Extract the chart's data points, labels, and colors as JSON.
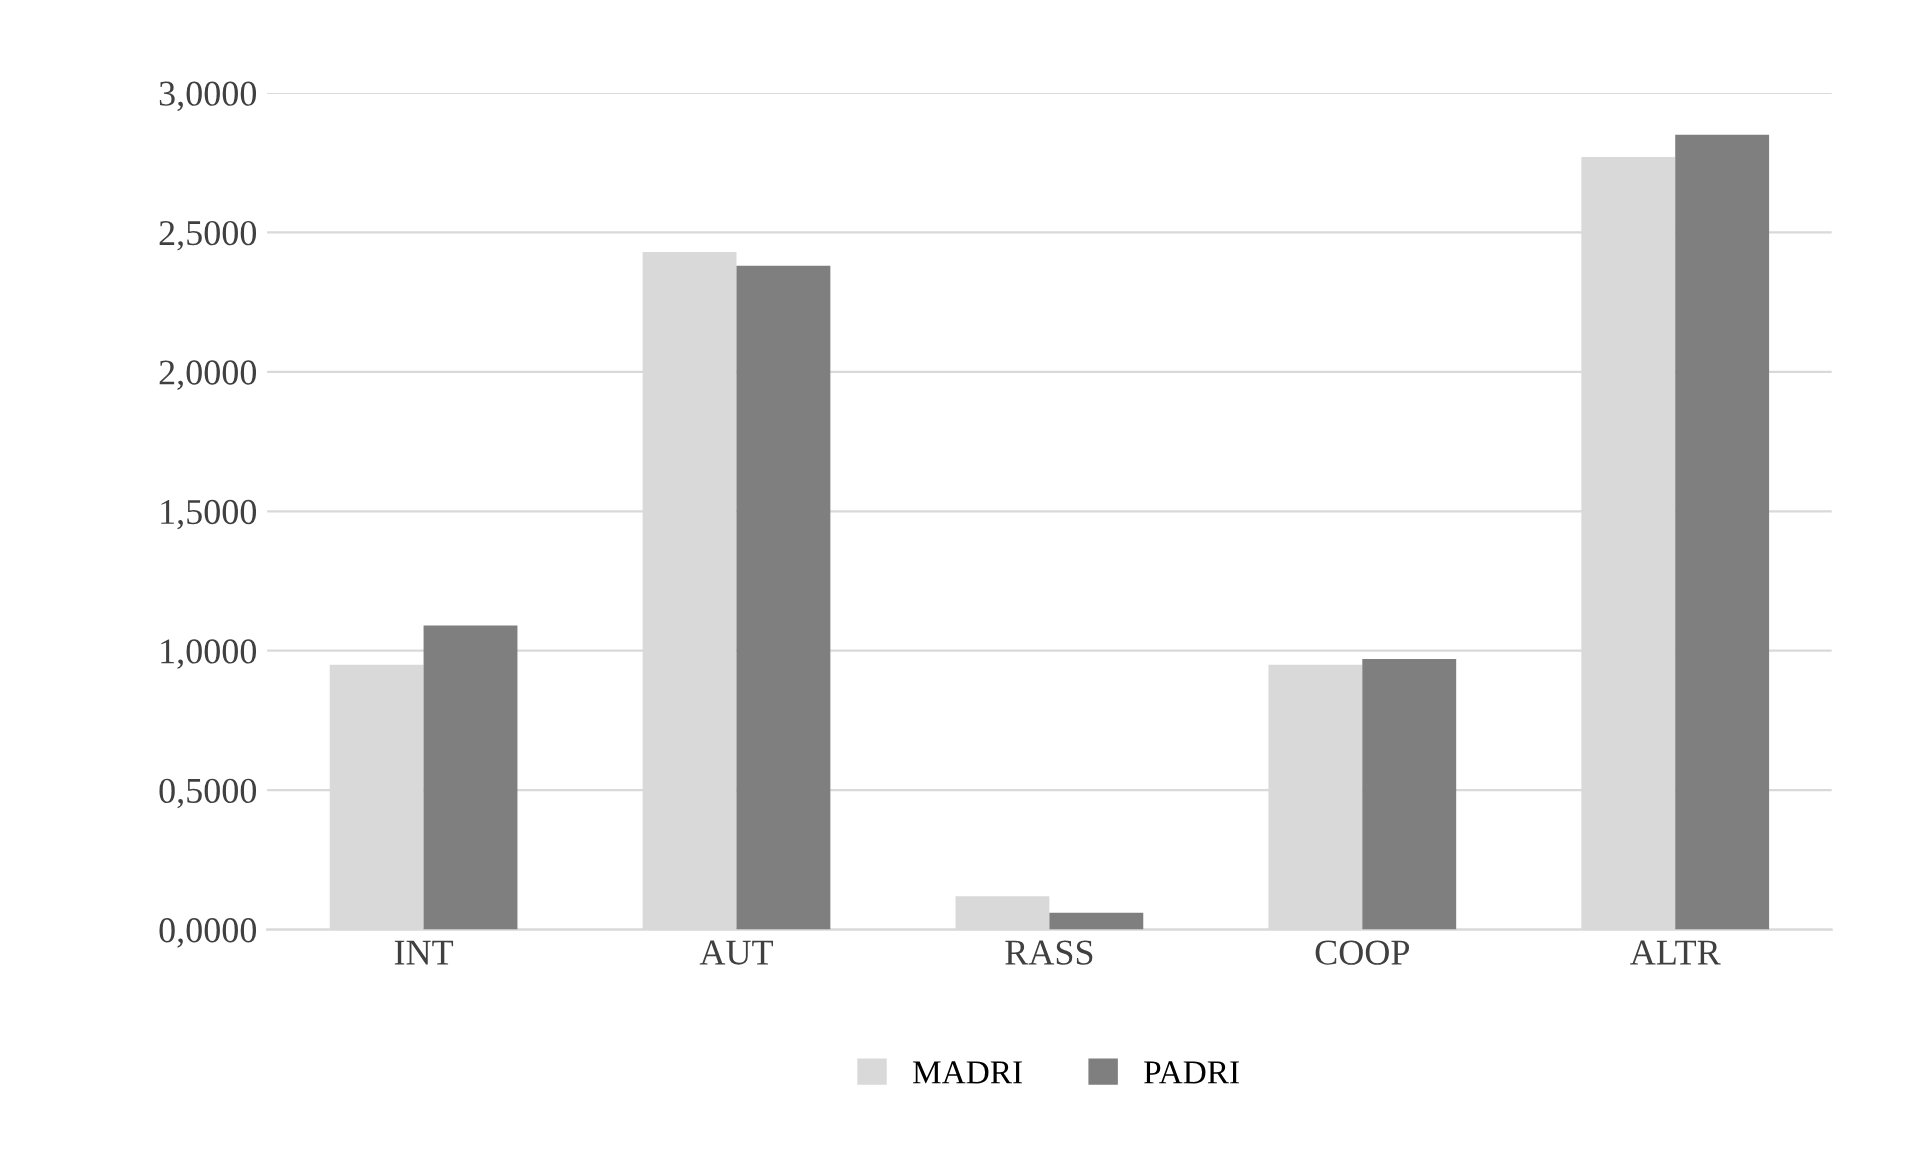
{
  "chart_data": {
    "type": "bar",
    "categories": [
      "INT",
      "AUT",
      "RASS",
      "COOP",
      "ALTR"
    ],
    "series": [
      {
        "name": "MADRI",
        "color": "#d9d9d9",
        "values": [
          0.95,
          2.43,
          0.12,
          0.95,
          2.77
        ]
      },
      {
        "name": "PADRI",
        "color": "#7f7f7f",
        "values": [
          1.09,
          2.38,
          0.06,
          0.97,
          2.85
        ]
      }
    ],
    "ylim": [
      0,
      3
    ],
    "yticks": [
      {
        "value": 0,
        "label": "0,0000"
      },
      {
        "value": 0.5,
        "label": "0,5000"
      },
      {
        "value": 1,
        "label": "1,0000"
      },
      {
        "value": 1.5,
        "label": "1,5000"
      },
      {
        "value": 2,
        "label": "2,0000"
      },
      {
        "value": 2.5,
        "label": "2,5000"
      },
      {
        "value": 3,
        "label": "3,0000"
      }
    ],
    "grid": "y",
    "legend": "bottom"
  }
}
